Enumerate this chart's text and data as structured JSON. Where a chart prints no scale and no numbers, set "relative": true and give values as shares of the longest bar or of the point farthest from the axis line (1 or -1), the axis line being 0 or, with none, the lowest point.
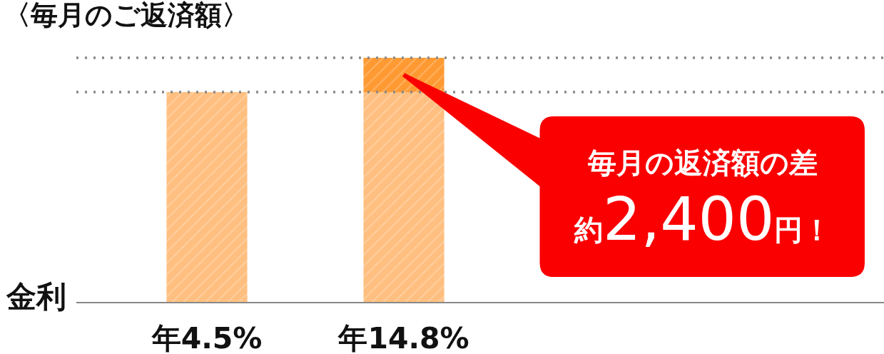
{
  "chart_data": {
    "type": "bar",
    "title": "〈毎月のご返済額〉",
    "xlabel": "金利",
    "categories": [
      "年4.5%",
      "年14.8%"
    ],
    "stacked": true,
    "relative": true,
    "series": [
      {
        "color": "#ffbf80",
        "values": [
          0.86,
          0.86
        ]
      },
      {
        "color": "#ff9a33",
        "values": [
          null,
          0.14
        ]
      }
    ],
    "ref_lines": [
      {
        "axis": "y",
        "value": 1,
        "color": "#888888",
        "line_style": "dotted"
      },
      {
        "axis": "y",
        "value": 0.86,
        "color": "#888888",
        "line_style": "dotted"
      }
    ],
    "annotations": [
      "毎月の返済額の差",
      "約2,400円！"
    ]
  }
}
